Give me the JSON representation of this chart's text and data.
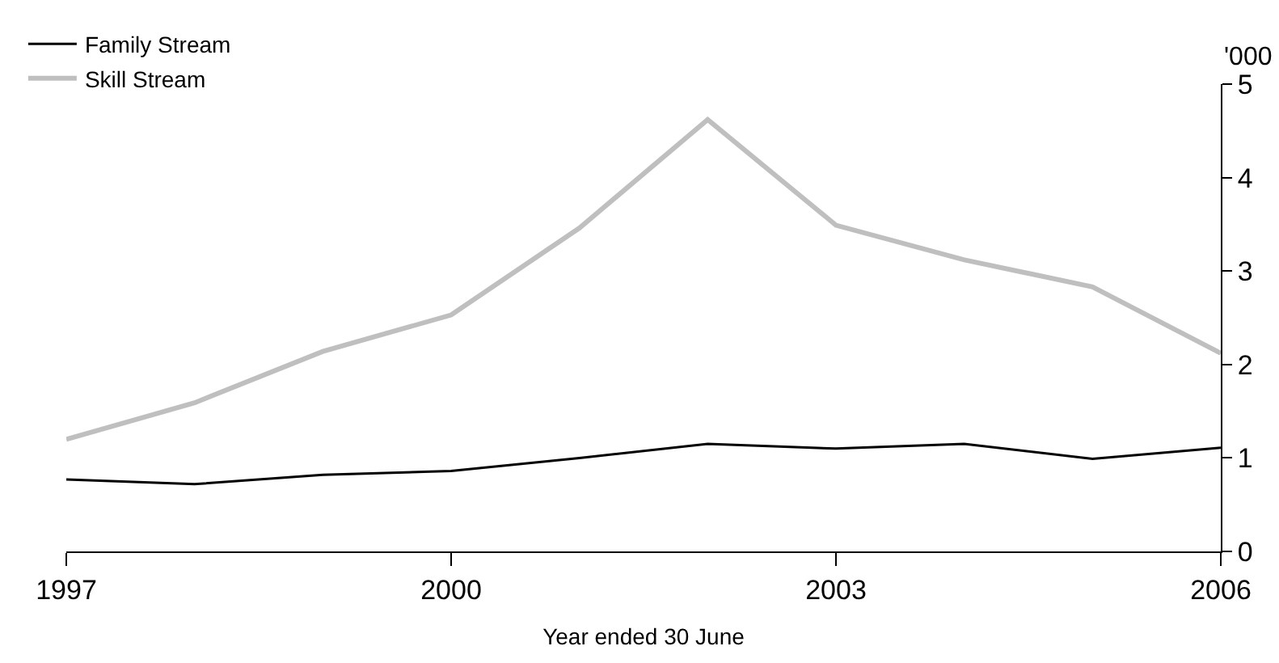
{
  "chart_data": {
    "type": "line",
    "xlabel": "Year ended 30 June",
    "ylabel": "'000",
    "x": [
      1997,
      1998,
      1999,
      2000,
      2001,
      2002,
      2003,
      2004,
      2005,
      2006
    ],
    "series": [
      {
        "name": "Family Stream",
        "color": "#000000",
        "values": [
          0.77,
          0.72,
          0.82,
          0.86,
          1.0,
          1.15,
          1.1,
          1.15,
          0.99,
          1.11
        ]
      },
      {
        "name": "Skill Stream",
        "color": "#bfbfbf",
        "values": [
          1.2,
          1.59,
          2.14,
          2.53,
          3.46,
          4.62,
          3.49,
          3.12,
          2.83,
          2.12
        ]
      }
    ],
    "xlim": [
      1997,
      2006
    ],
    "xticks": [
      1997,
      2000,
      2003,
      2006
    ],
    "ylim": [
      0,
      5
    ],
    "yticks": [
      0,
      1,
      2,
      3,
      4,
      5
    ],
    "legend": "top left",
    "marker": "none",
    "line_style": "solid"
  }
}
